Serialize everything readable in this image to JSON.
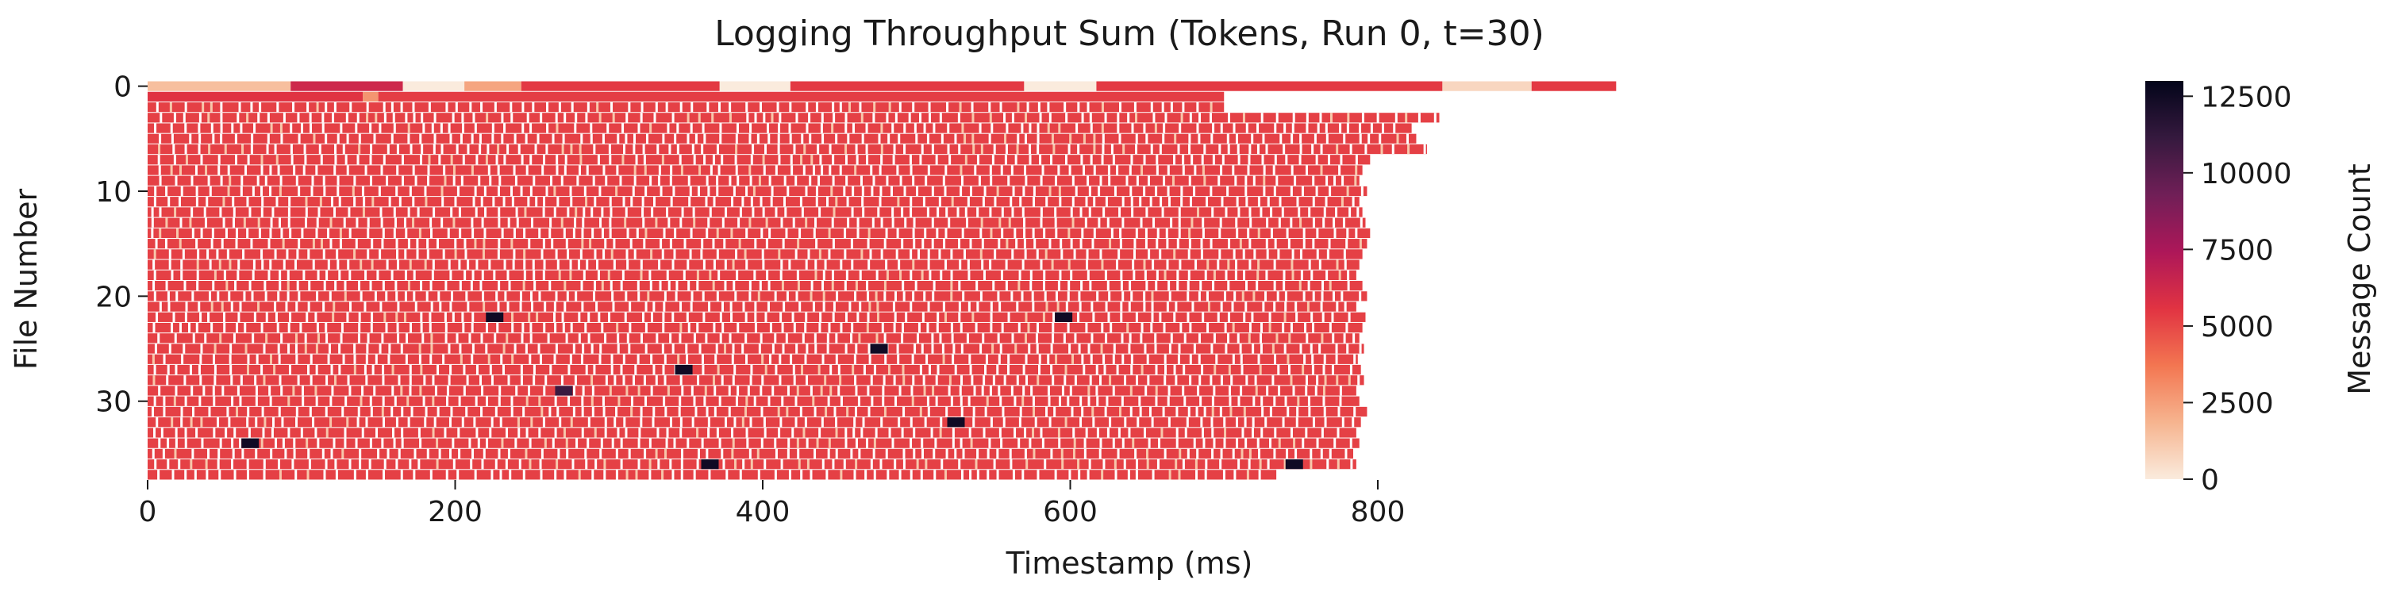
{
  "chart_data": {
    "type": "heatmap",
    "title": "Logging Throughput Sum (Tokens, Run 0, t=30)",
    "xlabel": "Timestamp (ms)",
    "ylabel": "File Number",
    "xlim": [
      0,
      960
    ],
    "ylim": [
      0,
      38
    ],
    "y_inverted": true,
    "x_ticks": [
      0,
      200,
      400,
      600,
      800
    ],
    "x_tick_labels": [
      "0",
      "200",
      "400",
      "600",
      "800"
    ],
    "y_ticks": [
      0,
      10,
      20,
      30
    ],
    "y_tick_labels": [
      "0",
      "10",
      "20",
      "30"
    ],
    "colorbar": {
      "label": "Message Count",
      "min": 0,
      "max": 13000,
      "ticks": [
        0,
        2500,
        5000,
        7500,
        10000,
        12500
      ],
      "tick_labels": [
        "0",
        "2500",
        "5000",
        "7500",
        "10000",
        "12500"
      ],
      "colormap": "rocket_r",
      "colormap_stops": [
        "#faebdd",
        "#f6b48f",
        "#f37651",
        "#e13342",
        "#ad1759",
        "#701f57",
        "#35193e",
        "#03051a"
      ]
    },
    "typical_value": 5200,
    "rows": [
      {
        "file": 0,
        "end_ms": 955,
        "segments": [
          {
            "x0": 0,
            "x1": 93,
            "value": 1500
          },
          {
            "x0": 93,
            "x1": 166,
            "value": 6300
          },
          {
            "x0": 166,
            "x1": 206,
            "value": 0
          },
          {
            "x0": 206,
            "x1": 243,
            "value": 2300
          },
          {
            "x0": 243,
            "x1": 372,
            "value": 5400
          },
          {
            "x0": 372,
            "x1": 418,
            "value": 0
          },
          {
            "x0": 418,
            "x1": 570,
            "value": 5400
          },
          {
            "x0": 570,
            "x1": 617,
            "value": 0
          },
          {
            "x0": 617,
            "x1": 842,
            "value": 5400
          },
          {
            "x0": 842,
            "x1": 900,
            "value": 700
          },
          {
            "x0": 900,
            "x1": 955,
            "value": 5400
          }
        ]
      },
      {
        "file": 1,
        "end_ms": 700,
        "segments": [
          {
            "x0": 0,
            "x1": 140,
            "value": 5600
          },
          {
            "x0": 140,
            "x1": 150,
            "value": 2800
          },
          {
            "x0": 150,
            "x1": 700,
            "value": 5300
          }
        ]
      },
      {
        "file": 2,
        "end_ms": 700
      },
      {
        "file": 3,
        "end_ms": 840
      },
      {
        "file": 4,
        "end_ms": 822
      },
      {
        "file": 5,
        "end_ms": 825
      },
      {
        "file": 6,
        "end_ms": 832
      },
      {
        "file": 7,
        "end_ms": 795
      },
      {
        "file": 8,
        "end_ms": 790
      },
      {
        "file": 9,
        "end_ms": 788
      },
      {
        "file": 10,
        "end_ms": 793
      },
      {
        "file": 11,
        "end_ms": 788
      },
      {
        "file": 12,
        "end_ms": 790
      },
      {
        "file": 13,
        "end_ms": 792
      },
      {
        "file": 14,
        "end_ms": 795
      },
      {
        "file": 15,
        "end_ms": 793
      },
      {
        "file": 16,
        "end_ms": 790
      },
      {
        "file": 17,
        "end_ms": 788
      },
      {
        "file": 18,
        "end_ms": 786
      },
      {
        "file": 19,
        "end_ms": 790
      },
      {
        "file": 20,
        "end_ms": 793
      },
      {
        "file": 21,
        "end_ms": 786
      },
      {
        "file": 22,
        "end_ms": 792
      },
      {
        "file": 23,
        "end_ms": 790
      },
      {
        "file": 24,
        "end_ms": 788
      },
      {
        "file": 25,
        "end_ms": 791
      },
      {
        "file": 26,
        "end_ms": 787
      },
      {
        "file": 27,
        "end_ms": 789
      },
      {
        "file": 28,
        "end_ms": 791
      },
      {
        "file": 29,
        "end_ms": 786
      },
      {
        "file": 30,
        "end_ms": 788
      },
      {
        "file": 31,
        "end_ms": 793
      },
      {
        "file": 32,
        "end_ms": 789
      },
      {
        "file": 33,
        "end_ms": 786
      },
      {
        "file": 34,
        "end_ms": 788
      },
      {
        "file": 35,
        "end_ms": 784
      },
      {
        "file": 36,
        "end_ms": 786
      },
      {
        "file": 37,
        "end_ms": 734
      }
    ],
    "highlights": [
      {
        "file": 34,
        "x": 61,
        "value": 12500
      },
      {
        "file": 36,
        "x": 360,
        "value": 12500
      },
      {
        "file": 27,
        "x": 343,
        "value": 12500
      },
      {
        "file": 25,
        "x": 470,
        "value": 12500
      },
      {
        "file": 32,
        "x": 520,
        "value": 12500
      },
      {
        "file": 22,
        "x": 590,
        "value": 12500
      },
      {
        "file": 36,
        "x": 740,
        "value": 12500
      },
      {
        "file": 22,
        "x": 220,
        "value": 12500
      },
      {
        "file": 29,
        "x": 265,
        "value": 11000
      }
    ]
  }
}
